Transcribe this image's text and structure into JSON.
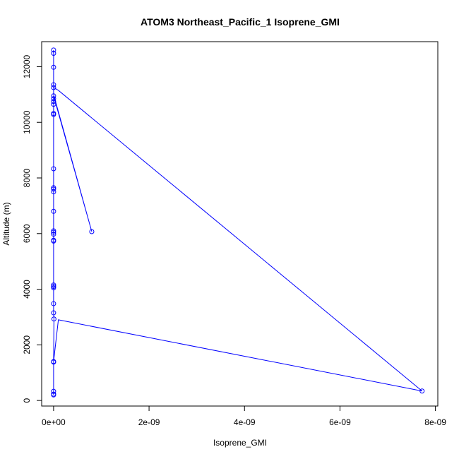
{
  "chart_data": {
    "type": "line",
    "title": "ATOM3 Northeast_Pacific_1 Isoprene_GMI",
    "xlabel": "Isoprene_GMI",
    "ylabel": "Altitude (m)",
    "xlim": [
      -2.5e-10,
      8.05e-09
    ],
    "ylim": [
      -200,
      12900
    ],
    "x_ticks": [
      {
        "value": 0,
        "label": "0e+00"
      },
      {
        "value": 2e-09,
        "label": "2e-09"
      },
      {
        "value": 4e-09,
        "label": "4e-09"
      },
      {
        "value": 6e-09,
        "label": "6e-09"
      },
      {
        "value": 8e-09,
        "label": "8e-09"
      }
    ],
    "y_ticks": [
      {
        "value": 0,
        "label": "0"
      },
      {
        "value": 2000,
        "label": "2000"
      },
      {
        "value": 4000,
        "label": "4000"
      },
      {
        "value": 6000,
        "label": "6000"
      },
      {
        "value": 8000,
        "label": "8000"
      },
      {
        "value": 10000,
        "label": "10000"
      },
      {
        "value": 12000,
        "label": "12000"
      }
    ],
    "series": [
      {
        "color": "#0000ff",
        "marker": "open-circle",
        "points": [
          {
            "x": 0,
            "y": 200
          },
          {
            "x": 0,
            "y": 230
          },
          {
            "x": 0,
            "y": 330
          },
          {
            "x": 0,
            "y": 1380
          },
          {
            "x": 0,
            "y": 1400
          },
          {
            "x": 7e-12,
            "y": 2930
          },
          {
            "x": 0,
            "y": 3150
          },
          {
            "x": 0,
            "y": 3480
          },
          {
            "x": 0,
            "y": 4050
          },
          {
            "x": 0,
            "y": 4100
          },
          {
            "x": 0,
            "y": 4150
          },
          {
            "x": 0,
            "y": 5730
          },
          {
            "x": 0,
            "y": 5760
          },
          {
            "x": 0,
            "y": 5980
          },
          {
            "x": 0,
            "y": 6050
          },
          {
            "x": 0,
            "y": 6100
          },
          {
            "x": 0,
            "y": 6800
          },
          {
            "x": 0,
            "y": 7500
          },
          {
            "x": 0,
            "y": 7600
          },
          {
            "x": 0,
            "y": 7650
          },
          {
            "x": 0,
            "y": 8330
          },
          {
            "x": 0,
            "y": 10280
          },
          {
            "x": 0,
            "y": 10320
          },
          {
            "x": 0,
            "y": 10650
          },
          {
            "x": 0,
            "y": 10750
          },
          {
            "x": 0,
            "y": 10850
          },
          {
            "x": 0,
            "y": 10950
          },
          {
            "x": 0,
            "y": 11250
          },
          {
            "x": 0,
            "y": 11350
          },
          {
            "x": 0,
            "y": 11980
          },
          {
            "x": 0,
            "y": 12480
          },
          {
            "x": 0,
            "y": 12600
          }
        ],
        "path": [
          {
            "x": 0,
            "y": 200
          },
          {
            "x": 0,
            "y": 230
          },
          {
            "x": 0,
            "y": 330
          },
          {
            "x": 0,
            "y": 1380
          },
          {
            "x": 0,
            "y": 1400
          },
          {
            "x": 1e-10,
            "y": 2900
          },
          {
            "x": 7.72e-09,
            "y": 340
          },
          {
            "x": 1e-10,
            "y": 11150
          },
          {
            "x": 0,
            "y": 11250
          },
          {
            "x": 0,
            "y": 11350
          },
          {
            "x": 0,
            "y": 11980
          },
          {
            "x": 0,
            "y": 12480
          },
          {
            "x": 0,
            "y": 12600
          },
          {
            "x": 0,
            "y": 11000
          },
          {
            "x": 8e-10,
            "y": 6070
          },
          {
            "x": 0,
            "y": 10950
          },
          {
            "x": 0,
            "y": 10850
          },
          {
            "x": 0,
            "y": 10750
          },
          {
            "x": 0,
            "y": 10650
          },
          {
            "x": 0,
            "y": 10320
          },
          {
            "x": 0,
            "y": 10280
          },
          {
            "x": 0,
            "y": 8330
          },
          {
            "x": 0,
            "y": 7650
          },
          {
            "x": 0,
            "y": 7600
          },
          {
            "x": 0,
            "y": 7500
          },
          {
            "x": 0,
            "y": 6800
          },
          {
            "x": 0,
            "y": 6100
          },
          {
            "x": 0,
            "y": 6050
          },
          {
            "x": 0,
            "y": 5980
          },
          {
            "x": 0,
            "y": 5760
          },
          {
            "x": 0,
            "y": 5730
          },
          {
            "x": 0,
            "y": 4150
          },
          {
            "x": 0,
            "y": 4100
          },
          {
            "x": 0,
            "y": 4050
          },
          {
            "x": 0,
            "y": 3480
          },
          {
            "x": 0,
            "y": 3150
          },
          {
            "x": 7e-12,
            "y": 2930
          },
          {
            "x": 0,
            "y": 1400
          },
          {
            "x": 0,
            "y": 200
          }
        ],
        "outliers": [
          {
            "x": 8e-10,
            "y": 6070
          },
          {
            "x": 7.72e-09,
            "y": 340
          }
        ]
      }
    ],
    "grid": false,
    "legend": "none"
  }
}
